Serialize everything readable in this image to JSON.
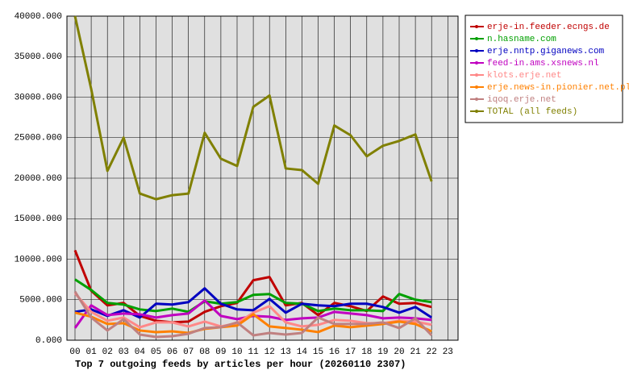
{
  "chart_data": {
    "type": "line",
    "title": "Top 7 outgoing feeds by articles per hour (20260110 2307)",
    "categories": [
      "00",
      "01",
      "02",
      "03",
      "04",
      "05",
      "06",
      "07",
      "08",
      "09",
      "10",
      "11",
      "12",
      "13",
      "14",
      "15",
      "16",
      "17",
      "18",
      "19",
      "20",
      "21",
      "22",
      "23"
    ],
    "ylim": [
      0,
      40000
    ],
    "yticks": [
      {
        "value": 0,
        "label": "0.000"
      },
      {
        "value": 5000,
        "label": "5000.000"
      },
      {
        "value": 10000,
        "label": "10000.000"
      },
      {
        "value": 15000,
        "label": "15000.000"
      },
      {
        "value": 20000,
        "label": "20000.000"
      },
      {
        "value": 25000,
        "label": "25000.000"
      },
      {
        "value": 30000,
        "label": "30000.000"
      },
      {
        "value": 35000,
        "label": "35000.000"
      },
      {
        "value": 40000,
        "label": "40000.000"
      }
    ],
    "grid": true,
    "legend": "right",
    "series": [
      {
        "name": "erje-in.feeder.ecngs.de",
        "color": "#c00000",
        "values": [
          11100,
          6100,
          4300,
          4600,
          3000,
          2400,
          2200,
          2300,
          3500,
          4200,
          4600,
          7400,
          7800,
          4300,
          4600,
          3100,
          4600,
          4200,
          3600,
          5400,
          4500,
          4600,
          4100,
          null
        ]
      },
      {
        "name": "n.hasname.com",
        "color": "#00a000",
        "values": [
          7500,
          6200,
          4600,
          4400,
          3800,
          3600,
          3900,
          3500,
          4800,
          4500,
          4700,
          5600,
          5700,
          4600,
          4500,
          3600,
          3900,
          3700,
          3700,
          3600,
          5700,
          5000,
          4700,
          null
        ]
      },
      {
        "name": "erje.nntp.giganews.com",
        "color": "#0000c0",
        "values": [
          3500,
          3800,
          3000,
          3700,
          2800,
          4500,
          4400,
          4700,
          6400,
          4500,
          3800,
          3700,
          5100,
          3400,
          4500,
          4300,
          4200,
          4500,
          4500,
          4100,
          3400,
          4100,
          2800,
          null
        ]
      },
      {
        "name": "feed-in.ams.xsnews.nl",
        "color": "#c000c0",
        "values": [
          1500,
          4300,
          3100,
          3300,
          3200,
          2800,
          3100,
          3300,
          4900,
          3000,
          2600,
          3000,
          2900,
          2500,
          2700,
          2800,
          3500,
          3300,
          3100,
          2700,
          2800,
          2700,
          2500,
          null
        ]
      },
      {
        "name": "klots.erje.net",
        "color": "#ff8888",
        "values": [
          5800,
          3500,
          2400,
          2800,
          1600,
          2200,
          2200,
          1700,
          2300,
          1700,
          2100,
          3400,
          4200,
          2200,
          1700,
          1900,
          2500,
          2400,
          2100,
          2100,
          2400,
          2300,
          1900,
          null
        ]
      },
      {
        "name": "erje.news-in.pionier.net.pl",
        "color": "#ff8000",
        "values": [
          3400,
          2900,
          2000,
          2100,
          1200,
          1000,
          1100,
          900,
          1400,
          1600,
          1800,
          3200,
          1700,
          1500,
          1300,
          1000,
          1800,
          1600,
          1800,
          2000,
          2300,
          2000,
          1100,
          null
        ]
      },
      {
        "name": "iqoq.erje.net",
        "color": "#c08080",
        "values": [
          6000,
          2800,
          1200,
          2600,
          700,
          400,
          500,
          800,
          1500,
          1600,
          2200,
          600,
          900,
          700,
          900,
          2800,
          2000,
          2000,
          2000,
          2200,
          1500,
          2700,
          600,
          null
        ]
      },
      {
        "name": "TOTAL (all feeds)",
        "color": "#808000",
        "values": [
          40000,
          31000,
          20900,
          25000,
          18100,
          17400,
          17900,
          18100,
          25600,
          22400,
          21500,
          28800,
          30200,
          21200,
          21000,
          19300,
          26500,
          25300,
          22700,
          24000,
          24600,
          25400,
          19600,
          null
        ]
      }
    ]
  }
}
